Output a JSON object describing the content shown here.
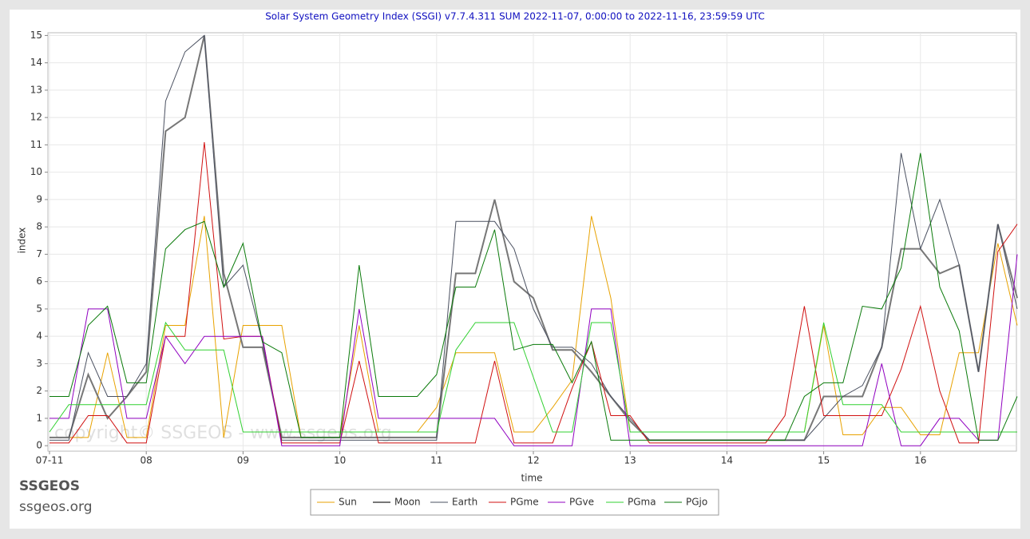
{
  "chart_data": {
    "type": "line",
    "title": "Solar System Geometry Index (SSGI) v7.7.4.311 SUM 2022-11-07,  0:00:00 to 2022-11-16, 23:59:59 UTC",
    "x_label": "time",
    "y_label": "index",
    "watermark": "copyright© SSGEOS - www.ssgeos.org",
    "brand": "SSGEOS",
    "brand_url": "ssgeos.org",
    "grid": true,
    "xlim": [
      0,
      10
    ],
    "ylim": [
      -0.2,
      15.1
    ],
    "xticks": [
      {
        "value": 0,
        "label": "07-11"
      },
      {
        "value": 1,
        "label": "08"
      },
      {
        "value": 2,
        "label": "09"
      },
      {
        "value": 3,
        "label": "10"
      },
      {
        "value": 4,
        "label": "11"
      },
      {
        "value": 5,
        "label": "12"
      },
      {
        "value": 6,
        "label": "13"
      },
      {
        "value": 7,
        "label": "14"
      },
      {
        "value": 8,
        "label": "15"
      },
      {
        "value": 9,
        "label": "16"
      }
    ],
    "yticks": [
      0,
      1,
      2,
      3,
      4,
      5,
      6,
      7,
      8,
      9,
      10,
      11,
      12,
      13,
      14,
      15
    ],
    "x": [
      0,
      0.2,
      0.4,
      0.6,
      0.8,
      1,
      1.2,
      1.4,
      1.6,
      1.8,
      2,
      2.2,
      2.4,
      2.6,
      2.8,
      3,
      3.2,
      3.4,
      3.6,
      3.8,
      4,
      4.2,
      4.4,
      4.6,
      4.8,
      5,
      5.2,
      5.4,
      5.6,
      5.8,
      6,
      6.2,
      6.4,
      6.6,
      6.8,
      7,
      7.2,
      7.4,
      7.6,
      7.8,
      8,
      8.2,
      8.4,
      8.6,
      8.8,
      9,
      9.2,
      9.4,
      9.6,
      9.8,
      10
    ],
    "series": [
      {
        "name": "Sun",
        "color": "#e8a200",
        "width": 1,
        "values": [
          0.3,
          0.3,
          0.3,
          3.4,
          0.3,
          0.3,
          4.4,
          4.4,
          8.4,
          0.3,
          4.4,
          4.4,
          4.4,
          0.3,
          0.3,
          0.3,
          4.4,
          0.5,
          0.5,
          0.5,
          1.4,
          3.4,
          3.4,
          3.4,
          0.5,
          0.5,
          1.4,
          2.4,
          8.4,
          5.4,
          0.5,
          0.5,
          0.5,
          0.5,
          0.5,
          0.5,
          0.5,
          0.5,
          0.5,
          0.5,
          4.4,
          0.4,
          0.4,
          1.4,
          1.4,
          0.4,
          0.4,
          3.4,
          3.4,
          7.4,
          4.4
        ]
      },
      {
        "name": "Moon",
        "color": "#777777",
        "width": 2,
        "values": [
          0.3,
          0.3,
          2.6,
          1.0,
          1.8,
          2.7,
          11.5,
          12,
          15,
          6.3,
          3.6,
          3.6,
          0.3,
          0.3,
          0.3,
          0.3,
          0.3,
          0.3,
          0.3,
          0.3,
          0.3,
          6.3,
          6.3,
          9.0,
          6.0,
          5.4,
          3.5,
          3.5,
          2.7,
          1.8,
          0.9,
          0.2,
          0.2,
          0.2,
          0.2,
          0.2,
          0.2,
          0.2,
          0.2,
          0.2,
          1.8,
          1.8,
          1.8,
          3.6,
          7.2,
          7.2,
          6.3,
          6.6,
          2.7,
          8.1,
          5.4
        ]
      },
      {
        "name": "Earth",
        "color": "#4a5060",
        "width": 1,
        "values": [
          0.2,
          0.2,
          3.4,
          1.8,
          1.8,
          3.0,
          12.6,
          14.4,
          15,
          5.8,
          6.6,
          3.8,
          0.2,
          0.2,
          0.2,
          0.2,
          0.2,
          0.2,
          0.2,
          0.2,
          0.2,
          8.2,
          8.2,
          8.2,
          7.2,
          5.0,
          3.6,
          3.6,
          3.0,
          1.8,
          1.0,
          0.2,
          0.2,
          0.2,
          0.2,
          0.2,
          0.2,
          0.2,
          0.2,
          0.2,
          1.0,
          1.8,
          2.2,
          3.6,
          10.7,
          7.2,
          9.0,
          6.6,
          2.7,
          8.1,
          5.0
        ]
      },
      {
        "name": "PGme",
        "color": "#d01010",
        "width": 1,
        "values": [
          0.1,
          0.1,
          1.1,
          1.1,
          0.1,
          0.1,
          4.0,
          4.0,
          11.1,
          3.9,
          4.0,
          4.0,
          0.1,
          0.1,
          0.1,
          0.1,
          3.1,
          0.1,
          0.1,
          0.1,
          0.1,
          0.1,
          0.1,
          3.1,
          0.1,
          0.1,
          0.1,
          2.1,
          3.8,
          1.1,
          1.1,
          0.1,
          0.1,
          0.1,
          0.1,
          0.1,
          0.1,
          0.1,
          1.1,
          5.1,
          1.1,
          1.1,
          1.1,
          1.1,
          2.8,
          5.1,
          2.0,
          0.1,
          0.1,
          7.1,
          8.1
        ]
      },
      {
        "name": "PGve",
        "color": "#9000c0",
        "width": 1,
        "values": [
          1,
          1,
          5,
          5,
          1,
          1,
          4,
          3,
          4,
          4,
          4,
          4,
          0,
          0,
          0,
          0,
          5,
          1,
          1,
          1,
          1,
          1,
          1,
          1,
          0,
          0,
          0,
          0,
          5,
          5,
          0,
          0,
          0,
          0,
          0,
          0,
          0,
          0,
          0,
          0,
          0,
          0,
          0,
          3,
          0,
          0,
          1,
          1,
          0.2,
          0.2,
          7.0
        ]
      },
      {
        "name": "PGma",
        "color": "#30d030",
        "width": 1,
        "values": [
          0.5,
          1.5,
          1.5,
          1.5,
          1.5,
          1.5,
          4.5,
          3.5,
          3.5,
          3.5,
          0.5,
          0.5,
          0.5,
          0.5,
          0.5,
          0.5,
          0.5,
          0.5,
          0.5,
          0.5,
          0.5,
          3.5,
          4.5,
          4.5,
          4.5,
          2.5,
          0.5,
          0.5,
          4.5,
          4.5,
          0.5,
          0.5,
          0.5,
          0.5,
          0.5,
          0.5,
          0.5,
          0.5,
          0.5,
          0.5,
          4.5,
          1.5,
          1.5,
          1.5,
          0.5,
          0.5,
          0.5,
          0.5,
          0.5,
          0.5,
          0.5
        ]
      },
      {
        "name": "PGjo",
        "color": "#0a7a0a",
        "width": 1,
        "values": [
          1.8,
          1.8,
          4.4,
          5.1,
          2.3,
          2.3,
          7.2,
          7.9,
          8.2,
          5.8,
          7.4,
          3.8,
          3.4,
          0.3,
          0.3,
          0.3,
          6.6,
          1.8,
          1.8,
          1.8,
          2.6,
          5.8,
          5.8,
          7.9,
          3.5,
          3.7,
          3.7,
          2.3,
          3.8,
          0.2,
          0.2,
          0.2,
          0.2,
          0.2,
          0.2,
          0.2,
          0.2,
          0.2,
          0.2,
          1.8,
          2.3,
          2.3,
          5.1,
          5.0,
          6.5,
          10.7,
          5.8,
          4.2,
          0.2,
          0.2,
          1.8
        ]
      }
    ]
  }
}
